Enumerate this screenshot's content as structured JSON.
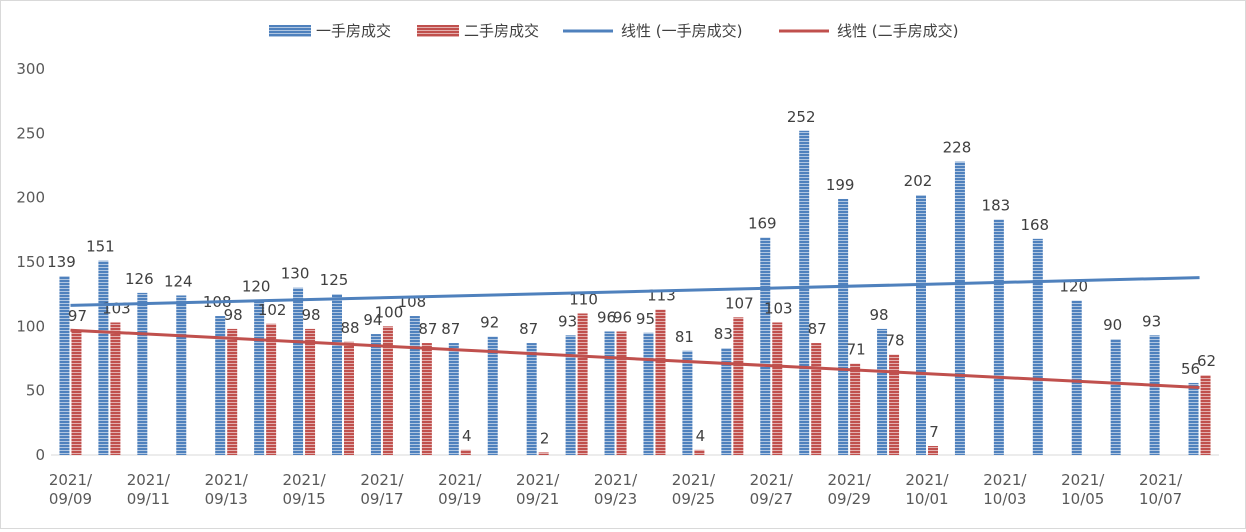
{
  "chart_data": {
    "type": "bar",
    "categories": [
      "2021/09/09",
      "2021/09/10",
      "2021/09/11",
      "2021/09/12",
      "2021/09/13",
      "2021/09/14",
      "2021/09/15",
      "2021/09/16",
      "2021/09/17",
      "2021/09/18",
      "2021/09/19",
      "2021/09/20",
      "2021/09/21",
      "2021/09/22",
      "2021/09/23",
      "2021/09/24",
      "2021/09/25",
      "2021/09/26",
      "2021/09/27",
      "2021/09/28",
      "2021/09/29",
      "2021/09/30",
      "2021/10/01",
      "2021/10/02",
      "2021/10/03",
      "2021/10/04",
      "2021/10/05",
      "2021/10/06",
      "2021/10/07",
      "2021/10/08"
    ],
    "x_tick_labels": [
      [
        "2021/",
        "09/09"
      ],
      [
        "2021/",
        "09/11"
      ],
      [
        "2021/",
        "09/13"
      ],
      [
        "2021/",
        "09/15"
      ],
      [
        "2021/",
        "09/17"
      ],
      [
        "2021/",
        "09/19"
      ],
      [
        "2021/",
        "09/21"
      ],
      [
        "2021/",
        "09/23"
      ],
      [
        "2021/",
        "09/25"
      ],
      [
        "2021/",
        "09/27"
      ],
      [
        "2021/",
        "09/29"
      ],
      [
        "2021/",
        "10/01"
      ],
      [
        "2021/",
        "10/03"
      ],
      [
        "2021/",
        "10/05"
      ],
      [
        "2021/",
        "10/07"
      ]
    ],
    "series": [
      {
        "name": "一手房成交",
        "color": "#4f81bd",
        "values": [
          139,
          151,
          126,
          124,
          108,
          120,
          130,
          125,
          94,
          108,
          87,
          92,
          87,
          93,
          96,
          95,
          81,
          83,
          169,
          252,
          199,
          98,
          202,
          228,
          183,
          168,
          120,
          90,
          93,
          56
        ]
      },
      {
        "name": "二手房成交",
        "color": "#c0504d",
        "values": [
          97,
          103,
          null,
          null,
          98,
          102,
          98,
          88,
          100,
          87,
          4,
          null,
          2,
          110,
          96,
          113,
          4,
          107,
          103,
          87,
          71,
          78,
          7,
          null,
          null,
          null,
          null,
          null,
          null,
          62
        ]
      }
    ],
    "trendlines": [
      {
        "name": "线性 (一手房成交)",
        "color": "#4f81bd",
        "start": 116.3,
        "end": 137.9
      },
      {
        "name": "线性 (二手房成交)",
        "color": "#c0504d",
        "start": 97.0,
        "end": 52.5
      }
    ],
    "ylim": [
      0,
      300
    ],
    "yticks": [
      0,
      50,
      100,
      150,
      200,
      250,
      300
    ],
    "legend_position": "top",
    "grid": false,
    "title": "",
    "xlabel": "",
    "ylabel": ""
  }
}
